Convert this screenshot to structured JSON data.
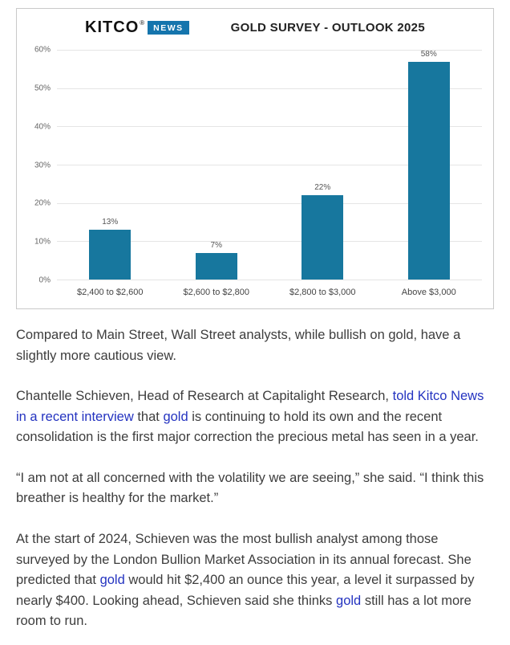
{
  "chart": {
    "brand": {
      "kitco": "KITCO",
      "reg": "®",
      "news": "NEWS",
      "news_bg": "#1575ad"
    }
  },
  "chart_data": {
    "type": "bar",
    "title": "GOLD SURVEY - OUTLOOK 2025",
    "categories": [
      "$2,400 to $2,600",
      "$2,600 to $2,800",
      "$2,800 to $3,000",
      "Above $3,000"
    ],
    "values": [
      13,
      7,
      22,
      58
    ],
    "value_labels": [
      "13%",
      "7%",
      "22%",
      "58%"
    ],
    "xlabel": "",
    "ylabel": "",
    "ylim": [
      0,
      60
    ],
    "yticks": [
      "60%",
      "50%",
      "40%",
      "30%",
      "20%",
      "10%",
      "0%"
    ],
    "grid": true,
    "legend": false,
    "bar_color": "#17779e"
  },
  "article": {
    "link_color": "#2433c0",
    "paragraphs": [
      [
        {
          "text": "Compared to Main Street, Wall Street analysts, while bullish on gold, have a slightly more cautious view.",
          "link": false
        }
      ],
      [
        {
          "text": "Chantelle Schieven, Head of Research at Capitalight Research, ",
          "link": false
        },
        {
          "text": "told Kitco News in a recent interview",
          "link": true
        },
        {
          "text": " that ",
          "link": false
        },
        {
          "text": "gold",
          "link": true
        },
        {
          "text": " is continuing to hold its own and the recent consolidation is the first major correction the precious metal has seen in a year.",
          "link": false
        }
      ],
      [
        {
          "text": "“I am not at all concerned with the volatility we are seeing,” she said. “I think this breather is healthy for the market.”",
          "link": false
        }
      ],
      [
        {
          "text": "At the start of 2024, Schieven was the most bullish analyst among those surveyed by the London Bullion Market Association in its annual forecast. She predicted that ",
          "link": false
        },
        {
          "text": "gold",
          "link": true
        },
        {
          "text": " would hit $2,400 an ounce this year, a level it surpassed by nearly $400. Looking ahead, Schieven said she thinks ",
          "link": false
        },
        {
          "text": "gold",
          "link": true
        },
        {
          "text": " still has a lot more room to run.",
          "link": false
        }
      ]
    ]
  }
}
